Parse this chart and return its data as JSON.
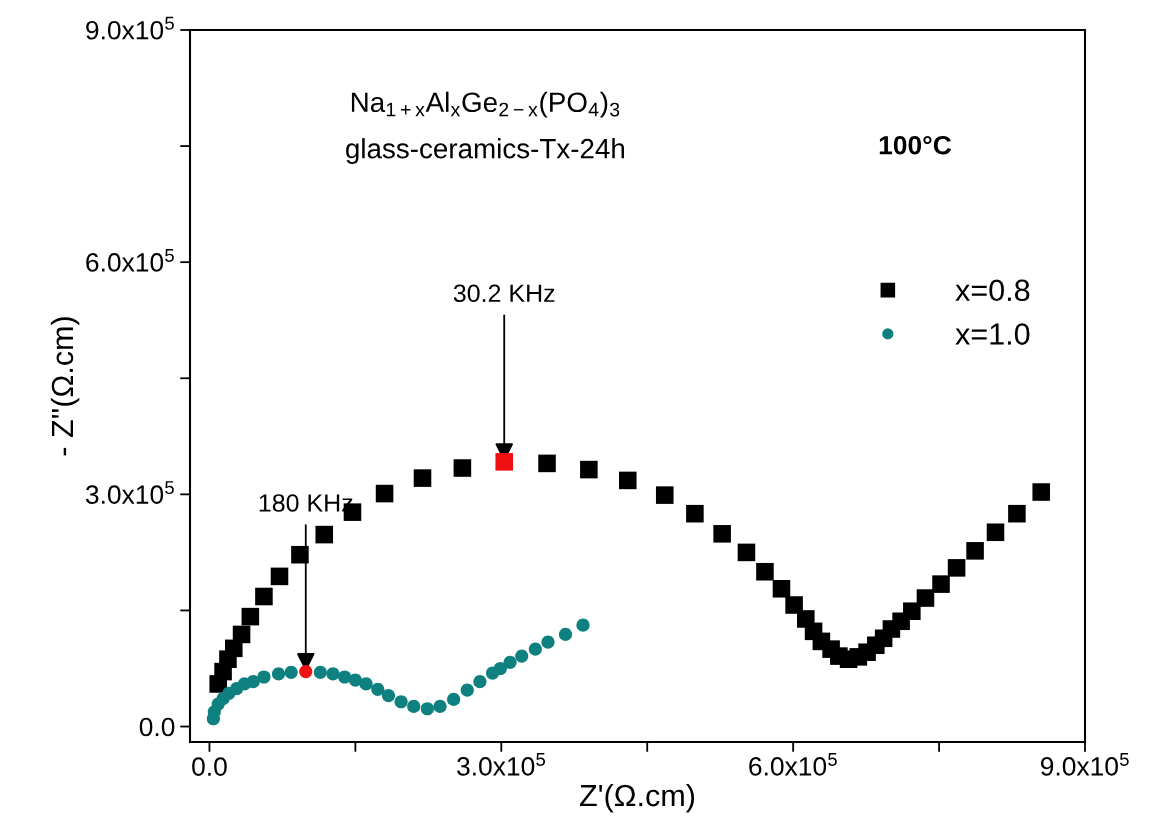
{
  "chart_data": {
    "type": "scatter",
    "xlabel": "Z'(Ω.cm)",
    "ylabel": "- Z''(Ω.cm)",
    "xlim": [
      -20000,
      900000
    ],
    "ylim": [
      -20000,
      900000
    ],
    "xticks": [
      {
        "value": 0,
        "label": "0.0"
      },
      {
        "value": 150000,
        "label": null
      },
      {
        "value": 300000,
        "label": "3.0x10$^{5}$"
      },
      {
        "value": 450000,
        "label": null
      },
      {
        "value": 600000,
        "label": "6.0x10$^{5}$"
      },
      {
        "value": 750000,
        "label": null
      },
      {
        "value": 900000,
        "label": "9.0x10$^{5}$"
      }
    ],
    "yticks": [
      {
        "value": 0,
        "label": "0.0"
      },
      {
        "value": 150000,
        "label": null
      },
      {
        "value": 300000,
        "label": "3.0x10$^{5}$"
      },
      {
        "value": 450000,
        "label": null
      },
      {
        "value": 600000,
        "label": "6.0x10$^{5}$"
      },
      {
        "value": 750000,
        "label": null
      },
      {
        "value": 900000,
        "label": "9.0x10$^{5}$"
      }
    ],
    "grid": false,
    "legend": "right",
    "annotations": [
      "Na$_{1+x}$Al$_{x}$Ge$_{2−x}$(PO$_{4}$)$_{3}$",
      "glass-ceramics-Tx-24h",
      "100°C",
      {
        "text": "30.2 KHz",
        "x": 303000,
        "y": 342000
      },
      {
        "text": "180 KHz",
        "x": 99000,
        "y": 71000
      }
    ],
    "series": [
      {
        "name": "x=0.8",
        "color": "#000000",
        "marker": "square",
        "x": [
          9000,
          14000,
          19000,
          25000,
          33000,
          42000,
          56000,
          72000,
          93000,
          118000,
          147000,
          180000,
          219000,
          260000,
          303000,
          347000,
          390000,
          430000,
          468000,
          499000,
          527000,
          552000,
          571000,
          588000,
          601000,
          613000,
          621000,
          629000,
          639000,
          647000,
          657000,
          667000,
          676000,
          685000,
          693000,
          701000,
          711000,
          722000,
          736000,
          752000,
          768000,
          787000,
          808000,
          830000,
          855000
        ],
        "values": [
          55000,
          71000,
          87000,
          101000,
          119000,
          142000,
          168000,
          194000,
          222000,
          248000,
          277000,
          301000,
          321000,
          334000,
          342000,
          340000,
          332000,
          318000,
          299000,
          275000,
          249000,
          225000,
          200000,
          178000,
          157000,
          139000,
          123000,
          110000,
          100000,
          91000,
          87000,
          90000,
          96000,
          105000,
          114000,
          126000,
          136000,
          149000,
          166000,
          184000,
          205000,
          227000,
          251000,
          275000,
          303000
        ],
        "colors": [
          "#000000",
          "#000000",
          "#000000",
          "#000000",
          "#000000",
          "#000000",
          "#000000",
          "#000000",
          "#000000",
          "#000000",
          "#000000",
          "#000000",
          "#000000",
          "#000000",
          "#ee1111",
          "#000000",
          "#000000",
          "#000000",
          "#000000",
          "#000000",
          "#000000",
          "#000000",
          "#000000",
          "#000000",
          "#000000",
          "#000000",
          "#000000",
          "#000000",
          "#000000",
          "#000000",
          "#000000",
          "#000000",
          "#000000",
          "#000000",
          "#000000",
          "#000000",
          "#000000",
          "#000000",
          "#000000",
          "#000000",
          "#000000",
          "#000000",
          "#000000",
          "#000000",
          "#000000"
        ]
      },
      {
        "name": "x=1.0",
        "color": "#0e8080",
        "marker": "circle",
        "x": [
          4000,
          5000,
          9000,
          14000,
          20000,
          28000,
          36000,
          45000,
          56000,
          71000,
          84000,
          99000,
          114000,
          127000,
          139000,
          150000,
          161000,
          173000,
          184000,
          197000,
          210000,
          224000,
          237000,
          251000,
          265000,
          278000,
          291000,
          299000,
          309000,
          321000,
          335000,
          348000,
          366000,
          384000
        ],
        "values": [
          10000,
          19000,
          29000,
          36000,
          43000,
          49000,
          55000,
          58000,
          64000,
          68000,
          70000,
          71000,
          70000,
          68000,
          64000,
          60000,
          55000,
          48000,
          40000,
          32000,
          26000,
          23000,
          26000,
          35000,
          47000,
          58000,
          69000,
          75000,
          83000,
          91000,
          100000,
          109000,
          119000,
          131000
        ],
        "colors": [
          "#0e8080",
          "#0e8080",
          "#0e8080",
          "#0e8080",
          "#0e8080",
          "#0e8080",
          "#0e8080",
          "#0e8080",
          "#0e8080",
          "#0e8080",
          "#0e8080",
          "#ee1111",
          "#0e8080",
          "#0e8080",
          "#0e8080",
          "#0e8080",
          "#0e8080",
          "#0e8080",
          "#0e8080",
          "#0e8080",
          "#0e8080",
          "#0e8080",
          "#0e8080",
          "#0e8080",
          "#0e8080",
          "#0e8080",
          "#0e8080",
          "#0e8080",
          "#0e8080",
          "#0e8080",
          "#0e8080",
          "#0e8080",
          "#0e8080",
          "#0e8080"
        ]
      }
    ]
  }
}
